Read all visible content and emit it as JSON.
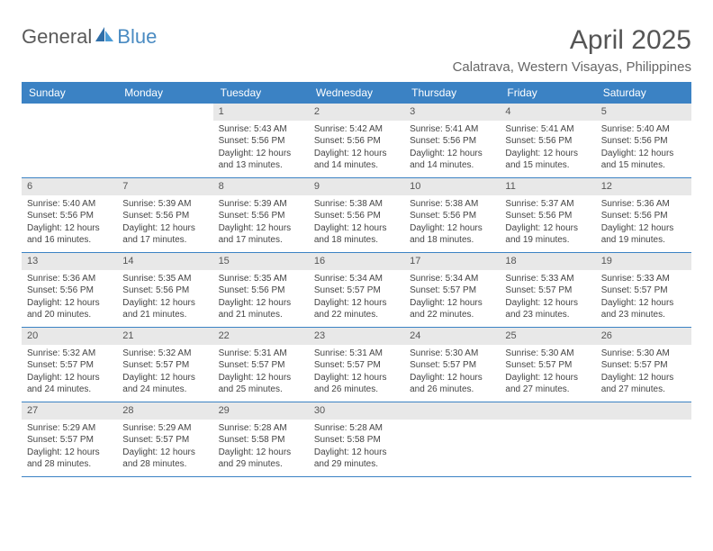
{
  "brand": {
    "part1": "General",
    "part2": "Blue"
  },
  "title": "April 2025",
  "location": "Calatrava, Western Visayas, Philippines",
  "colors": {
    "header_bg": "#3b82c4",
    "header_text": "#ffffff",
    "daynum_bg": "#e8e8e8",
    "border": "#3b82c4",
    "page_bg": "#ffffff",
    "text": "#444444"
  },
  "day_headers": [
    "Sunday",
    "Monday",
    "Tuesday",
    "Wednesday",
    "Thursday",
    "Friday",
    "Saturday"
  ],
  "weeks": [
    [
      null,
      null,
      {
        "n": "1",
        "sr": "5:43 AM",
        "ss": "5:56 PM",
        "dl": "12 hours and 13 minutes."
      },
      {
        "n": "2",
        "sr": "5:42 AM",
        "ss": "5:56 PM",
        "dl": "12 hours and 14 minutes."
      },
      {
        "n": "3",
        "sr": "5:41 AM",
        "ss": "5:56 PM",
        "dl": "12 hours and 14 minutes."
      },
      {
        "n": "4",
        "sr": "5:41 AM",
        "ss": "5:56 PM",
        "dl": "12 hours and 15 minutes."
      },
      {
        "n": "5",
        "sr": "5:40 AM",
        "ss": "5:56 PM",
        "dl": "12 hours and 15 minutes."
      }
    ],
    [
      {
        "n": "6",
        "sr": "5:40 AM",
        "ss": "5:56 PM",
        "dl": "12 hours and 16 minutes."
      },
      {
        "n": "7",
        "sr": "5:39 AM",
        "ss": "5:56 PM",
        "dl": "12 hours and 17 minutes."
      },
      {
        "n": "8",
        "sr": "5:39 AM",
        "ss": "5:56 PM",
        "dl": "12 hours and 17 minutes."
      },
      {
        "n": "9",
        "sr": "5:38 AM",
        "ss": "5:56 PM",
        "dl": "12 hours and 18 minutes."
      },
      {
        "n": "10",
        "sr": "5:38 AM",
        "ss": "5:56 PM",
        "dl": "12 hours and 18 minutes."
      },
      {
        "n": "11",
        "sr": "5:37 AM",
        "ss": "5:56 PM",
        "dl": "12 hours and 19 minutes."
      },
      {
        "n": "12",
        "sr": "5:36 AM",
        "ss": "5:56 PM",
        "dl": "12 hours and 19 minutes."
      }
    ],
    [
      {
        "n": "13",
        "sr": "5:36 AM",
        "ss": "5:56 PM",
        "dl": "12 hours and 20 minutes."
      },
      {
        "n": "14",
        "sr": "5:35 AM",
        "ss": "5:56 PM",
        "dl": "12 hours and 21 minutes."
      },
      {
        "n": "15",
        "sr": "5:35 AM",
        "ss": "5:56 PM",
        "dl": "12 hours and 21 minutes."
      },
      {
        "n": "16",
        "sr": "5:34 AM",
        "ss": "5:57 PM",
        "dl": "12 hours and 22 minutes."
      },
      {
        "n": "17",
        "sr": "5:34 AM",
        "ss": "5:57 PM",
        "dl": "12 hours and 22 minutes."
      },
      {
        "n": "18",
        "sr": "5:33 AM",
        "ss": "5:57 PM",
        "dl": "12 hours and 23 minutes."
      },
      {
        "n": "19",
        "sr": "5:33 AM",
        "ss": "5:57 PM",
        "dl": "12 hours and 23 minutes."
      }
    ],
    [
      {
        "n": "20",
        "sr": "5:32 AM",
        "ss": "5:57 PM",
        "dl": "12 hours and 24 minutes."
      },
      {
        "n": "21",
        "sr": "5:32 AM",
        "ss": "5:57 PM",
        "dl": "12 hours and 24 minutes."
      },
      {
        "n": "22",
        "sr": "5:31 AM",
        "ss": "5:57 PM",
        "dl": "12 hours and 25 minutes."
      },
      {
        "n": "23",
        "sr": "5:31 AM",
        "ss": "5:57 PM",
        "dl": "12 hours and 26 minutes."
      },
      {
        "n": "24",
        "sr": "5:30 AM",
        "ss": "5:57 PM",
        "dl": "12 hours and 26 minutes."
      },
      {
        "n": "25",
        "sr": "5:30 AM",
        "ss": "5:57 PM",
        "dl": "12 hours and 27 minutes."
      },
      {
        "n": "26",
        "sr": "5:30 AM",
        "ss": "5:57 PM",
        "dl": "12 hours and 27 minutes."
      }
    ],
    [
      {
        "n": "27",
        "sr": "5:29 AM",
        "ss": "5:57 PM",
        "dl": "12 hours and 28 minutes."
      },
      {
        "n": "28",
        "sr": "5:29 AM",
        "ss": "5:57 PM",
        "dl": "12 hours and 28 minutes."
      },
      {
        "n": "29",
        "sr": "5:28 AM",
        "ss": "5:58 PM",
        "dl": "12 hours and 29 minutes."
      },
      {
        "n": "30",
        "sr": "5:28 AM",
        "ss": "5:58 PM",
        "dl": "12 hours and 29 minutes."
      },
      null,
      null,
      null
    ]
  ],
  "labels": {
    "sunrise": "Sunrise:",
    "sunset": "Sunset:",
    "daylight": "Daylight:"
  }
}
